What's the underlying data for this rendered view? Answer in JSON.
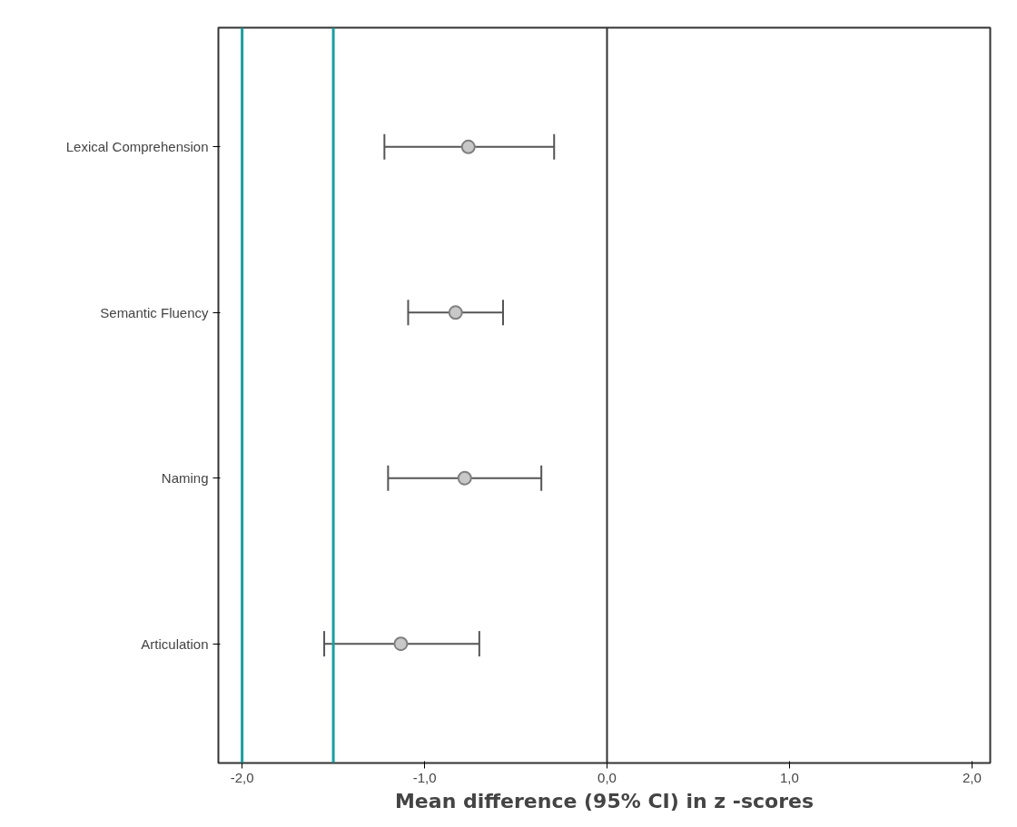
{
  "chart_data": {
    "type": "scatter",
    "orientation": "horizontal",
    "xlabel": "Mean difference (95% CI) in z -scores",
    "categories": [
      "Lexical Comprehension",
      "Semantic Fluency",
      "Naming",
      "Articulation"
    ],
    "values": [
      -0.76,
      -0.83,
      -0.78,
      -1.13
    ],
    "errors": [
      [
        -1.22,
        -0.29
      ],
      [
        -1.09,
        -0.57
      ],
      [
        -1.2,
        -0.36
      ],
      [
        -1.55,
        -0.7
      ]
    ],
    "color": "#808080",
    "marker": "circle",
    "grid": false,
    "xlim": [
      -2.13,
      2.1
    ],
    "xticks": [
      {
        "value": -2,
        "label": "-2,0"
      },
      {
        "value": -1,
        "label": "-1,0"
      },
      {
        "value": 0,
        "label": "0,0"
      },
      {
        "value": 1,
        "label": "1,0"
      },
      {
        "value": 2,
        "label": "2,0"
      }
    ],
    "ref_lines": [
      {
        "axis": "x",
        "value": -2,
        "color": "#1a9e9e"
      },
      {
        "axis": "x",
        "value": -1.5,
        "color": "#1a9e9e"
      },
      {
        "axis": "x",
        "value": 0,
        "color": "#333333"
      }
    ]
  }
}
